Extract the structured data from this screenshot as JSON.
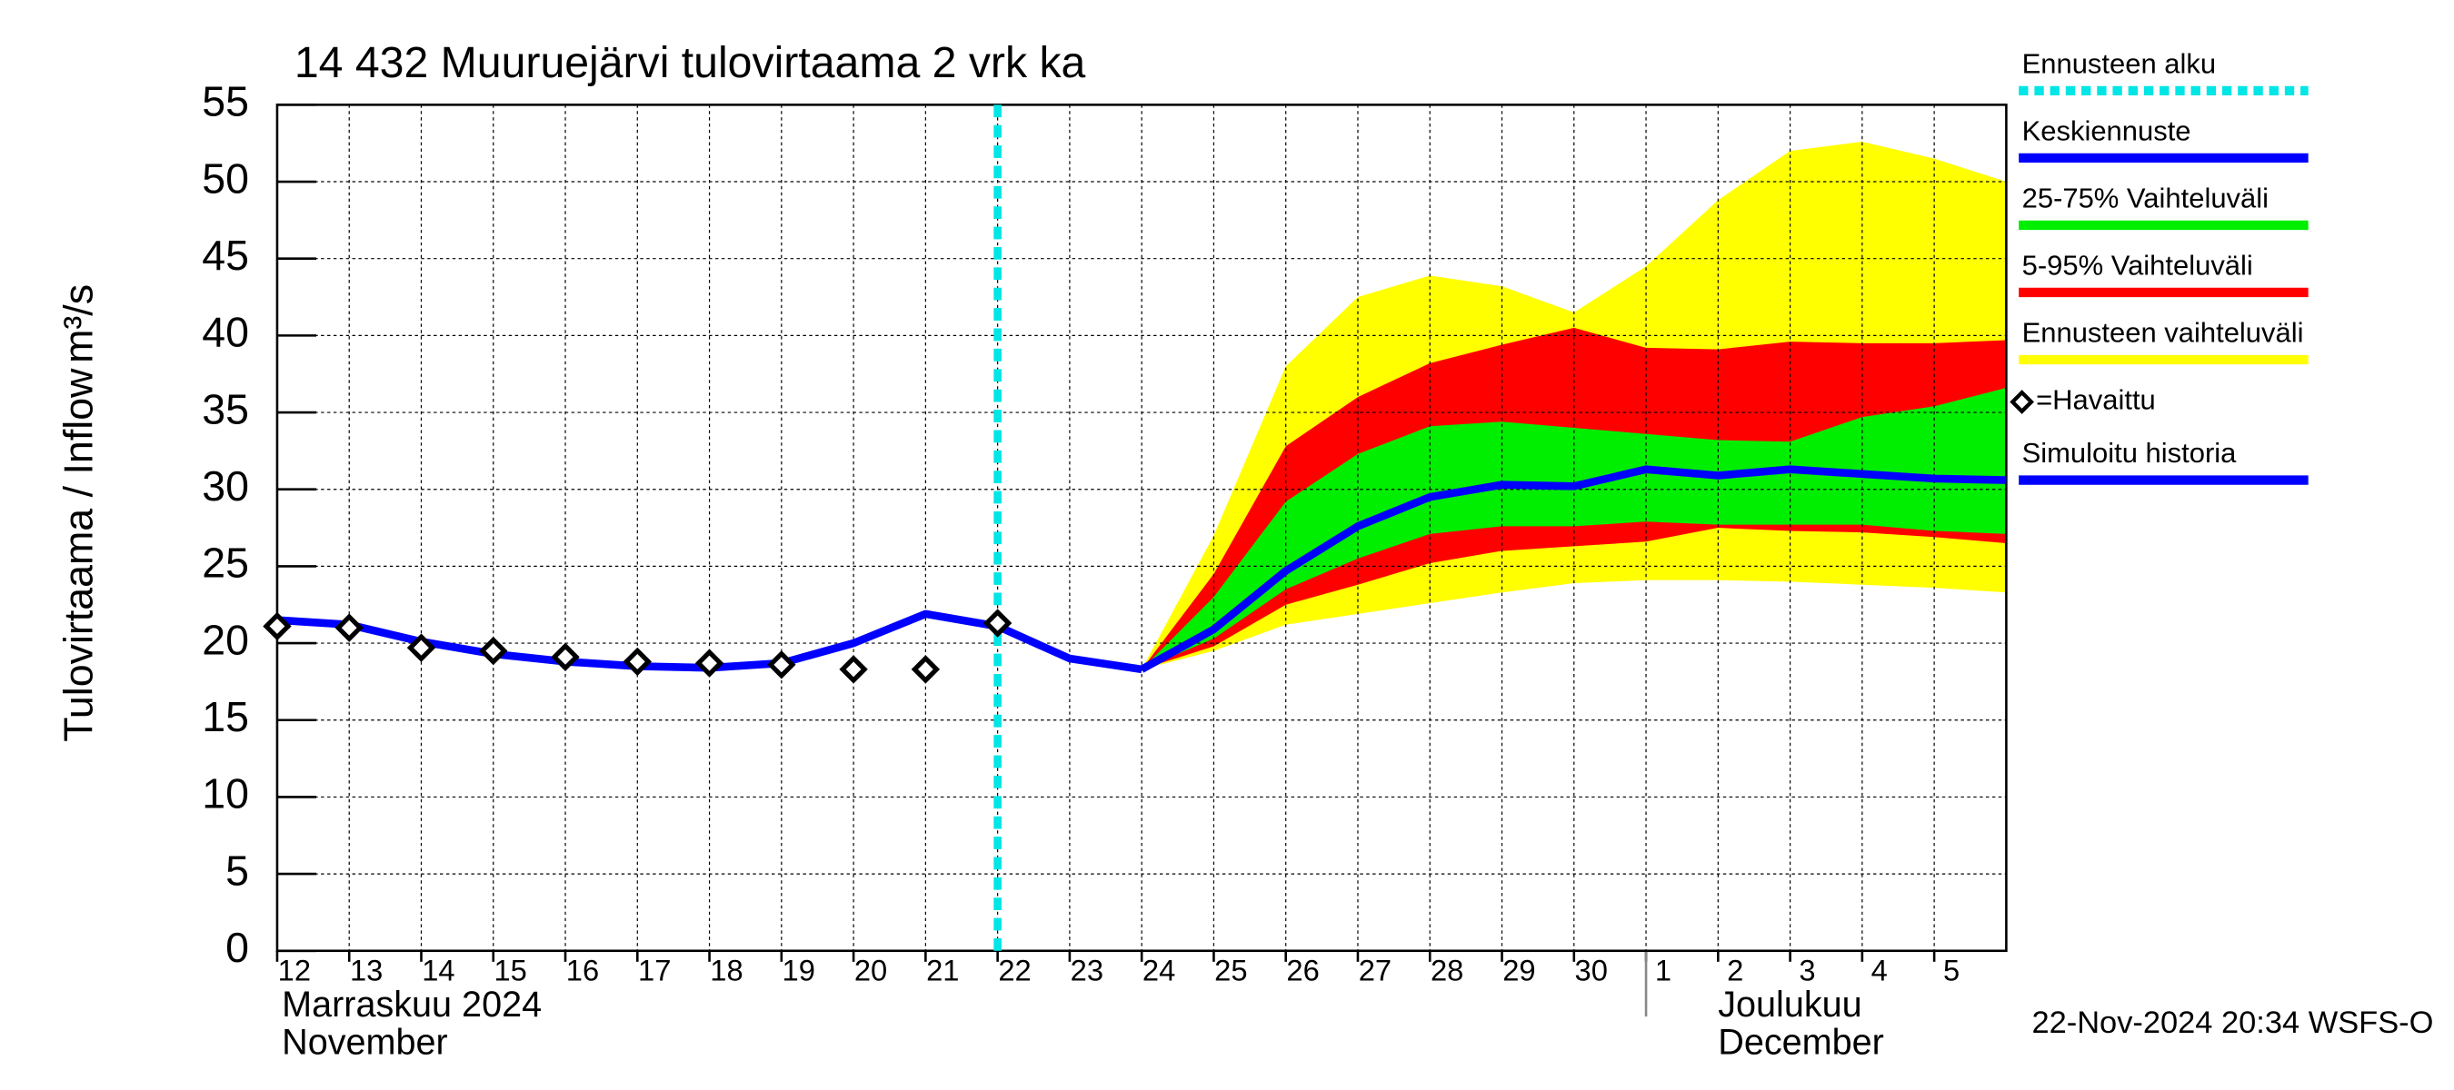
{
  "chart_data": {
    "type": "line",
    "title": "14 432 Muuruejärvi tulovirtaama 2 vrk ka",
    "ylabel": "Tulovirtaama / Inflow",
    "yunit": "m³/s",
    "x": [
      "2024-11-12",
      "2024-11-13",
      "2024-11-14",
      "2024-11-15",
      "2024-11-16",
      "2024-11-17",
      "2024-11-18",
      "2024-11-19",
      "2024-11-20",
      "2024-11-21",
      "2024-11-22",
      "2024-11-23",
      "2024-11-24",
      "2024-11-25",
      "2024-11-26",
      "2024-11-27",
      "2024-11-28",
      "2024-11-29",
      "2024-11-30",
      "2024-12-01",
      "2024-12-02",
      "2024-12-03",
      "2024-12-04",
      "2024-12-05",
      "2024-12-06"
    ],
    "series": [
      {
        "name": "Keskiennuste",
        "color": "#0000ff",
        "values": [
          null,
          null,
          null,
          null,
          null,
          null,
          null,
          null,
          null,
          null,
          null,
          null,
          18.3,
          20.9,
          24.7,
          27.6,
          29.5,
          30.3,
          30.2,
          31.3,
          30.9,
          31.3,
          31.0,
          30.7,
          30.6
        ]
      },
      {
        "name": "=Havaittu",
        "color": "#000000",
        "marker": "diamond",
        "values": [
          21.1,
          21.0,
          19.7,
          19.5,
          19.1,
          18.8,
          18.7,
          18.6,
          18.3,
          18.3,
          21.3,
          null,
          null,
          null,
          null,
          null,
          null,
          null,
          null,
          null,
          null,
          null,
          null,
          null,
          null
        ]
      },
      {
        "name": "Simuloitu historia",
        "color": "#0000ff",
        "values": [
          21.5,
          21.2,
          20.1,
          19.3,
          18.8,
          18.5,
          18.4,
          18.7,
          20.0,
          21.9,
          21.1,
          19.0,
          18.3,
          null,
          null,
          null,
          null,
          null,
          null,
          null,
          null,
          null,
          null,
          null,
          null
        ]
      }
    ],
    "bands": [
      {
        "name": "25-75% Vaihteluväli",
        "color": "#00ee00",
        "lower": [
          null,
          null,
          null,
          null,
          null,
          null,
          null,
          null,
          null,
          null,
          null,
          null,
          18.3,
          20.3,
          23.5,
          25.5,
          27.1,
          27.6,
          27.6,
          27.9,
          27.7,
          27.7,
          27.7,
          27.3,
          27.1
        ],
        "upper": [
          null,
          null,
          null,
          null,
          null,
          null,
          null,
          null,
          null,
          null,
          null,
          null,
          18.3,
          23.0,
          29.2,
          32.3,
          34.1,
          34.4,
          34.0,
          33.6,
          33.2,
          33.1,
          34.7,
          35.4,
          36.6
        ]
      },
      {
        "name": "5-95% Vaihteluväli",
        "color": "#ff0000",
        "lower": [
          null,
          null,
          null,
          null,
          null,
          null,
          null,
          null,
          null,
          null,
          null,
          null,
          18.3,
          19.8,
          22.5,
          23.8,
          25.2,
          26.0,
          26.3,
          26.6,
          27.5,
          27.3,
          27.2,
          26.9,
          26.5
        ],
        "upper": [
          null,
          null,
          null,
          null,
          null,
          null,
          null,
          null,
          null,
          null,
          null,
          null,
          18.3,
          24.5,
          32.8,
          36.0,
          38.2,
          39.4,
          40.5,
          39.2,
          39.1,
          39.6,
          39.5,
          39.5,
          39.7
        ]
      },
      {
        "name": "Ennusteen vaihteluväli",
        "color": "#ffff00",
        "lower": [
          null,
          null,
          null,
          null,
          null,
          null,
          null,
          null,
          null,
          null,
          null,
          null,
          18.3,
          19.5,
          21.2,
          21.9,
          22.6,
          23.3,
          23.9,
          24.1,
          24.1,
          24.0,
          23.8,
          23.6,
          23.3
        ],
        "upper": [
          null,
          null,
          null,
          null,
          null,
          null,
          null,
          null,
          null,
          null,
          null,
          null,
          18.3,
          27.0,
          38.0,
          42.5,
          43.9,
          43.2,
          41.5,
          44.5,
          48.8,
          52.0,
          52.6,
          51.5,
          50.0
        ]
      }
    ],
    "forecast_start": {
      "name": "Ennusteen alku",
      "x": "2024-11-22",
      "color": "#00e5e5"
    },
    "xlim": [
      "2024-11-12",
      "2024-12-06"
    ],
    "xticks": [
      {
        "value": "2024-11-12",
        "label": "12"
      },
      {
        "value": "2024-11-13",
        "label": "13"
      },
      {
        "value": "2024-11-14",
        "label": "14"
      },
      {
        "value": "2024-11-15",
        "label": "15"
      },
      {
        "value": "2024-11-16",
        "label": "16"
      },
      {
        "value": "2024-11-17",
        "label": "17"
      },
      {
        "value": "2024-11-18",
        "label": "18"
      },
      {
        "value": "2024-11-19",
        "label": "19"
      },
      {
        "value": "2024-11-20",
        "label": "20"
      },
      {
        "value": "2024-11-21",
        "label": "21"
      },
      {
        "value": "2024-11-22",
        "label": "22"
      },
      {
        "value": "2024-11-23",
        "label": "23"
      },
      {
        "value": "2024-11-24",
        "label": "24"
      },
      {
        "value": "2024-11-25",
        "label": "25"
      },
      {
        "value": "2024-11-26",
        "label": "26"
      },
      {
        "value": "2024-11-27",
        "label": "27"
      },
      {
        "value": "2024-11-28",
        "label": "28"
      },
      {
        "value": "2024-11-29",
        "label": "29"
      },
      {
        "value": "2024-11-30",
        "label": "30"
      },
      {
        "value": "2024-12-01",
        "label": "1"
      },
      {
        "value": "2024-12-02",
        "label": "2"
      },
      {
        "value": "2024-12-03",
        "label": "3"
      },
      {
        "value": "2024-12-04",
        "label": "4"
      },
      {
        "value": "2024-12-05",
        "label": "5"
      }
    ],
    "ylim": [
      0,
      55
    ],
    "yticks": [
      0,
      5,
      10,
      15,
      20,
      25,
      30,
      35,
      40,
      45,
      50,
      55
    ],
    "grid": true,
    "month_labels": [
      {
        "x": "2024-11-12",
        "labels": [
          "Marraskuu 2024",
          "November"
        ]
      },
      {
        "x": "2024-12-01",
        "labels": [
          "Joulukuu",
          "December"
        ]
      }
    ],
    "footer": "22-Nov-2024 20:34 WSFS-O"
  }
}
